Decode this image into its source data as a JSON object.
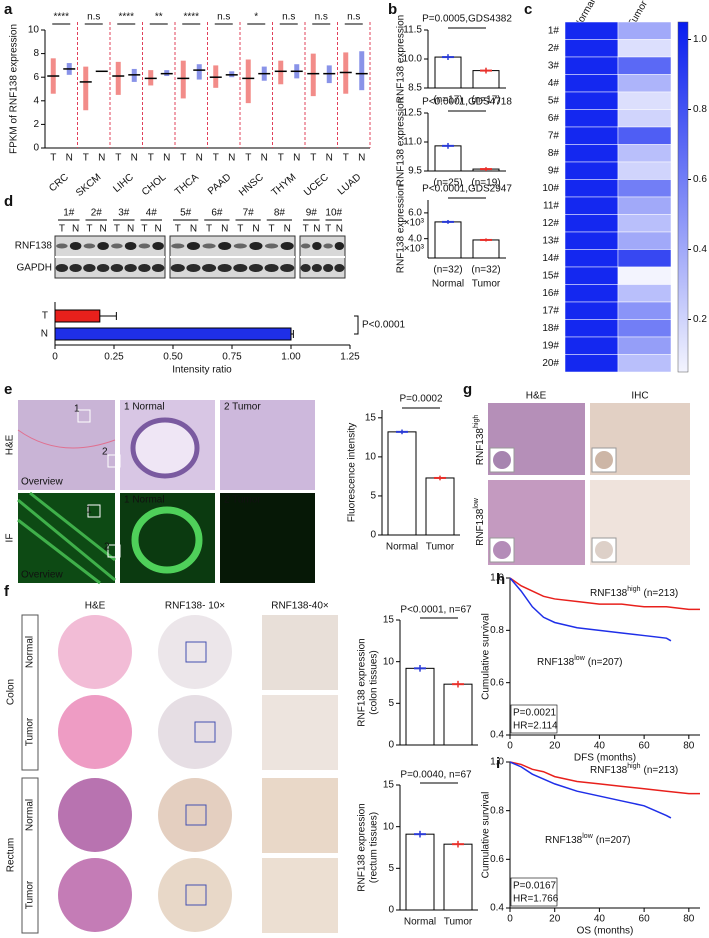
{
  "panels": {
    "a": {
      "label": "a",
      "ylabel": "FPKM of RNF138 expression",
      "ylim": [
        0,
        10
      ],
      "yticks": [
        0,
        2,
        4,
        6,
        8,
        10
      ],
      "categories": [
        "CRC",
        "SKCM",
        "LIHC",
        "CHOL",
        "THCA",
        "PAAD",
        "HNSC",
        "THYM",
        "UCEC",
        "LUAD"
      ],
      "significance": [
        "****",
        "n.s",
        "****",
        "**",
        "****",
        "n.s",
        "*",
        "n.s",
        "n.s",
        "n.s"
      ],
      "series": [
        {
          "name": "T",
          "color": "#e8302a",
          "values": [
            6.1,
            5.6,
            6.1,
            5.9,
            5.9,
            6.0,
            5.9,
            6.5,
            6.3,
            6.4
          ],
          "low": [
            4.6,
            3.2,
            4.5,
            5.3,
            4.2,
            5.1,
            3.8,
            5.4,
            4.4,
            4.6
          ],
          "high": [
            7.6,
            6.9,
            7.3,
            6.6,
            7.4,
            7.0,
            7.5,
            7.4,
            8.0,
            8.1
          ]
        },
        {
          "name": "N",
          "color": "#2a3bd6",
          "values": [
            6.7,
            6.5,
            6.2,
            6.3,
            6.6,
            6.2,
            6.3,
            6.5,
            6.3,
            6.3
          ],
          "low": [
            6.2,
            6.5,
            5.6,
            6.1,
            5.8,
            6.0,
            5.7,
            5.9,
            5.5,
            4.9
          ],
          "high": [
            7.2,
            6.5,
            6.7,
            6.6,
            7.1,
            6.5,
            6.9,
            7.1,
            7.0,
            8.2
          ]
        }
      ]
    },
    "b": {
      "label": "b",
      "ylabel": "RNF138 expression",
      "categories": [
        "Normal",
        "Tumor"
      ],
      "colors": [
        "#2a3bd6",
        "#e8302a"
      ],
      "charts": [
        {
          "title": "P=0.0005,GDS4382",
          "ylim": [
            8.5,
            11.5
          ],
          "yticks": [
            8.5,
            {
              "value": 10,
              "label": "10.0"
            },
            11.5
          ],
          "values": [
            10.1,
            9.4
          ],
          "errors": [
            0.15,
            0.15
          ],
          "n_labels": [
            "(n=17)",
            "(n=17)"
          ]
        },
        {
          "title": "P<0.0001,GDS4718",
          "ylim": [
            9.5,
            12.5
          ],
          "yticks": [
            9.5,
            {
              "value": 11,
              "label": "11.0"
            },
            12.5
          ],
          "values": [
            10.8,
            9.6
          ],
          "errors": [
            0.15,
            0.1
          ],
          "n_labels": [
            "(n=25)",
            "(n=19)"
          ]
        },
        {
          "title": "P<0.0001,GDS2947",
          "ylim": [
            2500,
            7000
          ],
          "yticks": [
            {
              "value": 4000,
              "label": "4.0"
            },
            {
              "value": 6000,
              "label": "6.0"
            }
          ],
          "tick_suffix": "×10³",
          "values": [
            5300,
            3900
          ],
          "errors": [
            150,
            120
          ],
          "n_labels": [
            "(n=32)",
            "(n=32)"
          ]
        }
      ]
    },
    "c": {
      "label": "c",
      "columns": [
        "Normal",
        "Tumor"
      ],
      "rows": [
        "1#",
        "2#",
        "3#",
        "4#",
        "5#",
        "6#",
        "7#",
        "8#",
        "9#",
        "10#",
        "11#",
        "12#",
        "13#",
        "14#",
        "15#",
        "16#",
        "17#",
        "18#",
        "19#",
        "20#"
      ],
      "values": [
        [
          1,
          0.4
        ],
        [
          1,
          0.15
        ],
        [
          1,
          0.7
        ],
        [
          1,
          0.35
        ],
        [
          1,
          0.15
        ],
        [
          1,
          0.2
        ],
        [
          1,
          0.75
        ],
        [
          1,
          0.3
        ],
        [
          1,
          0.2
        ],
        [
          1,
          0.6
        ],
        [
          1,
          0.4
        ],
        [
          1,
          0.3
        ],
        [
          1,
          0.4
        ],
        [
          1,
          0.85
        ],
        [
          1,
          0.05
        ],
        [
          1,
          0.3
        ],
        [
          1,
          0.5
        ],
        [
          1,
          0.6
        ],
        [
          1,
          0.45
        ],
        [
          1,
          0.3
        ]
      ],
      "color": "#1428f0",
      "colorbar_lim": [
        0.05,
        1.05
      ],
      "colorbar_ticks": [
        0.2,
        0.4,
        0.6,
        0.8,
        {
          "value": 1,
          "label": "1.0"
        }
      ]
    },
    "d": {
      "label": "d",
      "blot_groups": [
        [
          "1#",
          "2#",
          "3#",
          "4#"
        ],
        [
          "5#",
          "6#",
          "7#",
          "8#"
        ],
        [
          "9#",
          "10#"
        ]
      ],
      "lane_labels": [
        "T",
        "N"
      ],
      "blot_rows": [
        "RNF138",
        "GAPDH"
      ],
      "categories": [
        "T",
        "N"
      ],
      "values": [
        0.19,
        1.0
      ],
      "errors": [
        0.07,
        0.01
      ],
      "colors": [
        "#e8201c",
        "#1f2fe8"
      ],
      "xlim": [
        0,
        1.25
      ],
      "xticks": [
        0,
        0.25,
        {
          "value": 0.5,
          "label": "0.50"
        },
        0.75,
        {
          "value": 1,
          "label": "1.00"
        },
        1.25
      ],
      "xlabel": "Intensity ratio",
      "p_value": "P<0.0001"
    },
    "e": {
      "label": "e",
      "row_labels": [
        "H&E",
        "IF"
      ],
      "overview": "Overview",
      "insets": [
        "1",
        "2"
      ],
      "zoom_titles": [
        "1 Normal",
        "2 Tumor"
      ],
      "ylabel": "Fluorescence intensity",
      "ylim": [
        0,
        16
      ],
      "yticks": [
        0,
        5,
        10,
        15
      ],
      "categories": [
        "Normal",
        "Tumor"
      ],
      "values": [
        13.2,
        7.3
      ],
      "errors": [
        0.3,
        0.3
      ],
      "p_value": "P=0.0002"
    },
    "f": {
      "label": "f",
      "column_titles": [
        "H&E",
        "RNF138- 10×",
        "RNF138-40×"
      ],
      "tissue_labels": [
        "Colon",
        "Rectum"
      ],
      "row_labels": [
        "Normal",
        "Tumor"
      ],
      "categories": [
        "Normal",
        "Tumor"
      ],
      "ylim": [
        0,
        15
      ],
      "yticks": [
        0,
        5,
        10,
        15
      ],
      "charts": [
        {
          "title": "P<0.0001, n=67",
          "ylabel": [
            "RNF138 expression",
            "(colon tissues)"
          ],
          "values": [
            9.2,
            7.3
          ],
          "errors": [
            0.4,
            0.4
          ]
        },
        {
          "title": "P=0.0040, n=67",
          "ylabel": [
            "RNF138 expression",
            "(rectum tissues)"
          ],
          "values": [
            9.1,
            7.9
          ],
          "errors": [
            0.4,
            0.4
          ]
        }
      ]
    },
    "g": {
      "label": "g",
      "column_titles": [
        "H&E",
        "IHC"
      ],
      "row_labels": [
        {
          "base": "RNF138",
          "sup": "high"
        },
        {
          "base": "RNF138",
          "sup": "low"
        }
      ]
    },
    "h": {
      "label": "h",
      "ylabel": "Cumulative survival",
      "xlabel": "DFS (months)",
      "xlim": [
        0,
        85
      ],
      "ylim": [
        0.4,
        1.0
      ],
      "xticks": [
        0,
        20,
        40,
        60,
        80
      ],
      "yticks": [
        0.4,
        0.6,
        0.8,
        {
          "value": 1,
          "label": "1.0"
        }
      ],
      "series": [
        {
          "name": "RNF138",
          "sup": "high",
          "count": "(n=213)",
          "color": "#e8201c",
          "x": [
            0,
            5,
            10,
            15,
            20,
            30,
            40,
            50,
            60,
            70,
            80,
            85
          ],
          "values": [
            1,
            0.97,
            0.95,
            0.93,
            0.92,
            0.91,
            0.9,
            0.9,
            0.89,
            0.89,
            0.88,
            0.88
          ]
        },
        {
          "name": "RNF138",
          "sup": "low",
          "count": "(n=207)",
          "color": "#1f2fe8",
          "x": [
            0,
            5,
            10,
            15,
            20,
            30,
            40,
            50,
            60,
            70,
            72
          ],
          "values": [
            1,
            0.95,
            0.89,
            0.85,
            0.83,
            0.81,
            0.8,
            0.79,
            0.78,
            0.77,
            0.76
          ]
        }
      ],
      "p_value": "P=0.0021",
      "hr": "HR=2.114"
    },
    "i": {
      "label": "i",
      "ylabel": "Cumulative survival",
      "xlabel": "OS (months)",
      "xlim": [
        0,
        85
      ],
      "ylim": [
        0.4,
        1.0
      ],
      "xticks": [
        0,
        20,
        40,
        60,
        80
      ],
      "yticks": [
        0.4,
        0.6,
        0.8,
        {
          "value": 1,
          "label": "1.0"
        }
      ],
      "series": [
        {
          "name": "RNF138",
          "sup": "high",
          "count": "(n=213)",
          "color": "#e8201c",
          "x": [
            0,
            5,
            10,
            15,
            20,
            30,
            40,
            50,
            60,
            70,
            80,
            85
          ],
          "values": [
            1,
            0.99,
            0.97,
            0.96,
            0.94,
            0.92,
            0.91,
            0.9,
            0.89,
            0.88,
            0.87,
            0.87
          ]
        },
        {
          "name": "RNF138",
          "sup": "low",
          "count": "(n=207)",
          "color": "#1f2fe8",
          "x": [
            0,
            5,
            10,
            15,
            20,
            30,
            40,
            50,
            60,
            70,
            72
          ],
          "values": [
            1,
            0.98,
            0.95,
            0.93,
            0.91,
            0.88,
            0.86,
            0.84,
            0.82,
            0.78,
            0.77
          ]
        }
      ],
      "p_value": "P=0.0167",
      "hr": "HR=1.766"
    }
  }
}
